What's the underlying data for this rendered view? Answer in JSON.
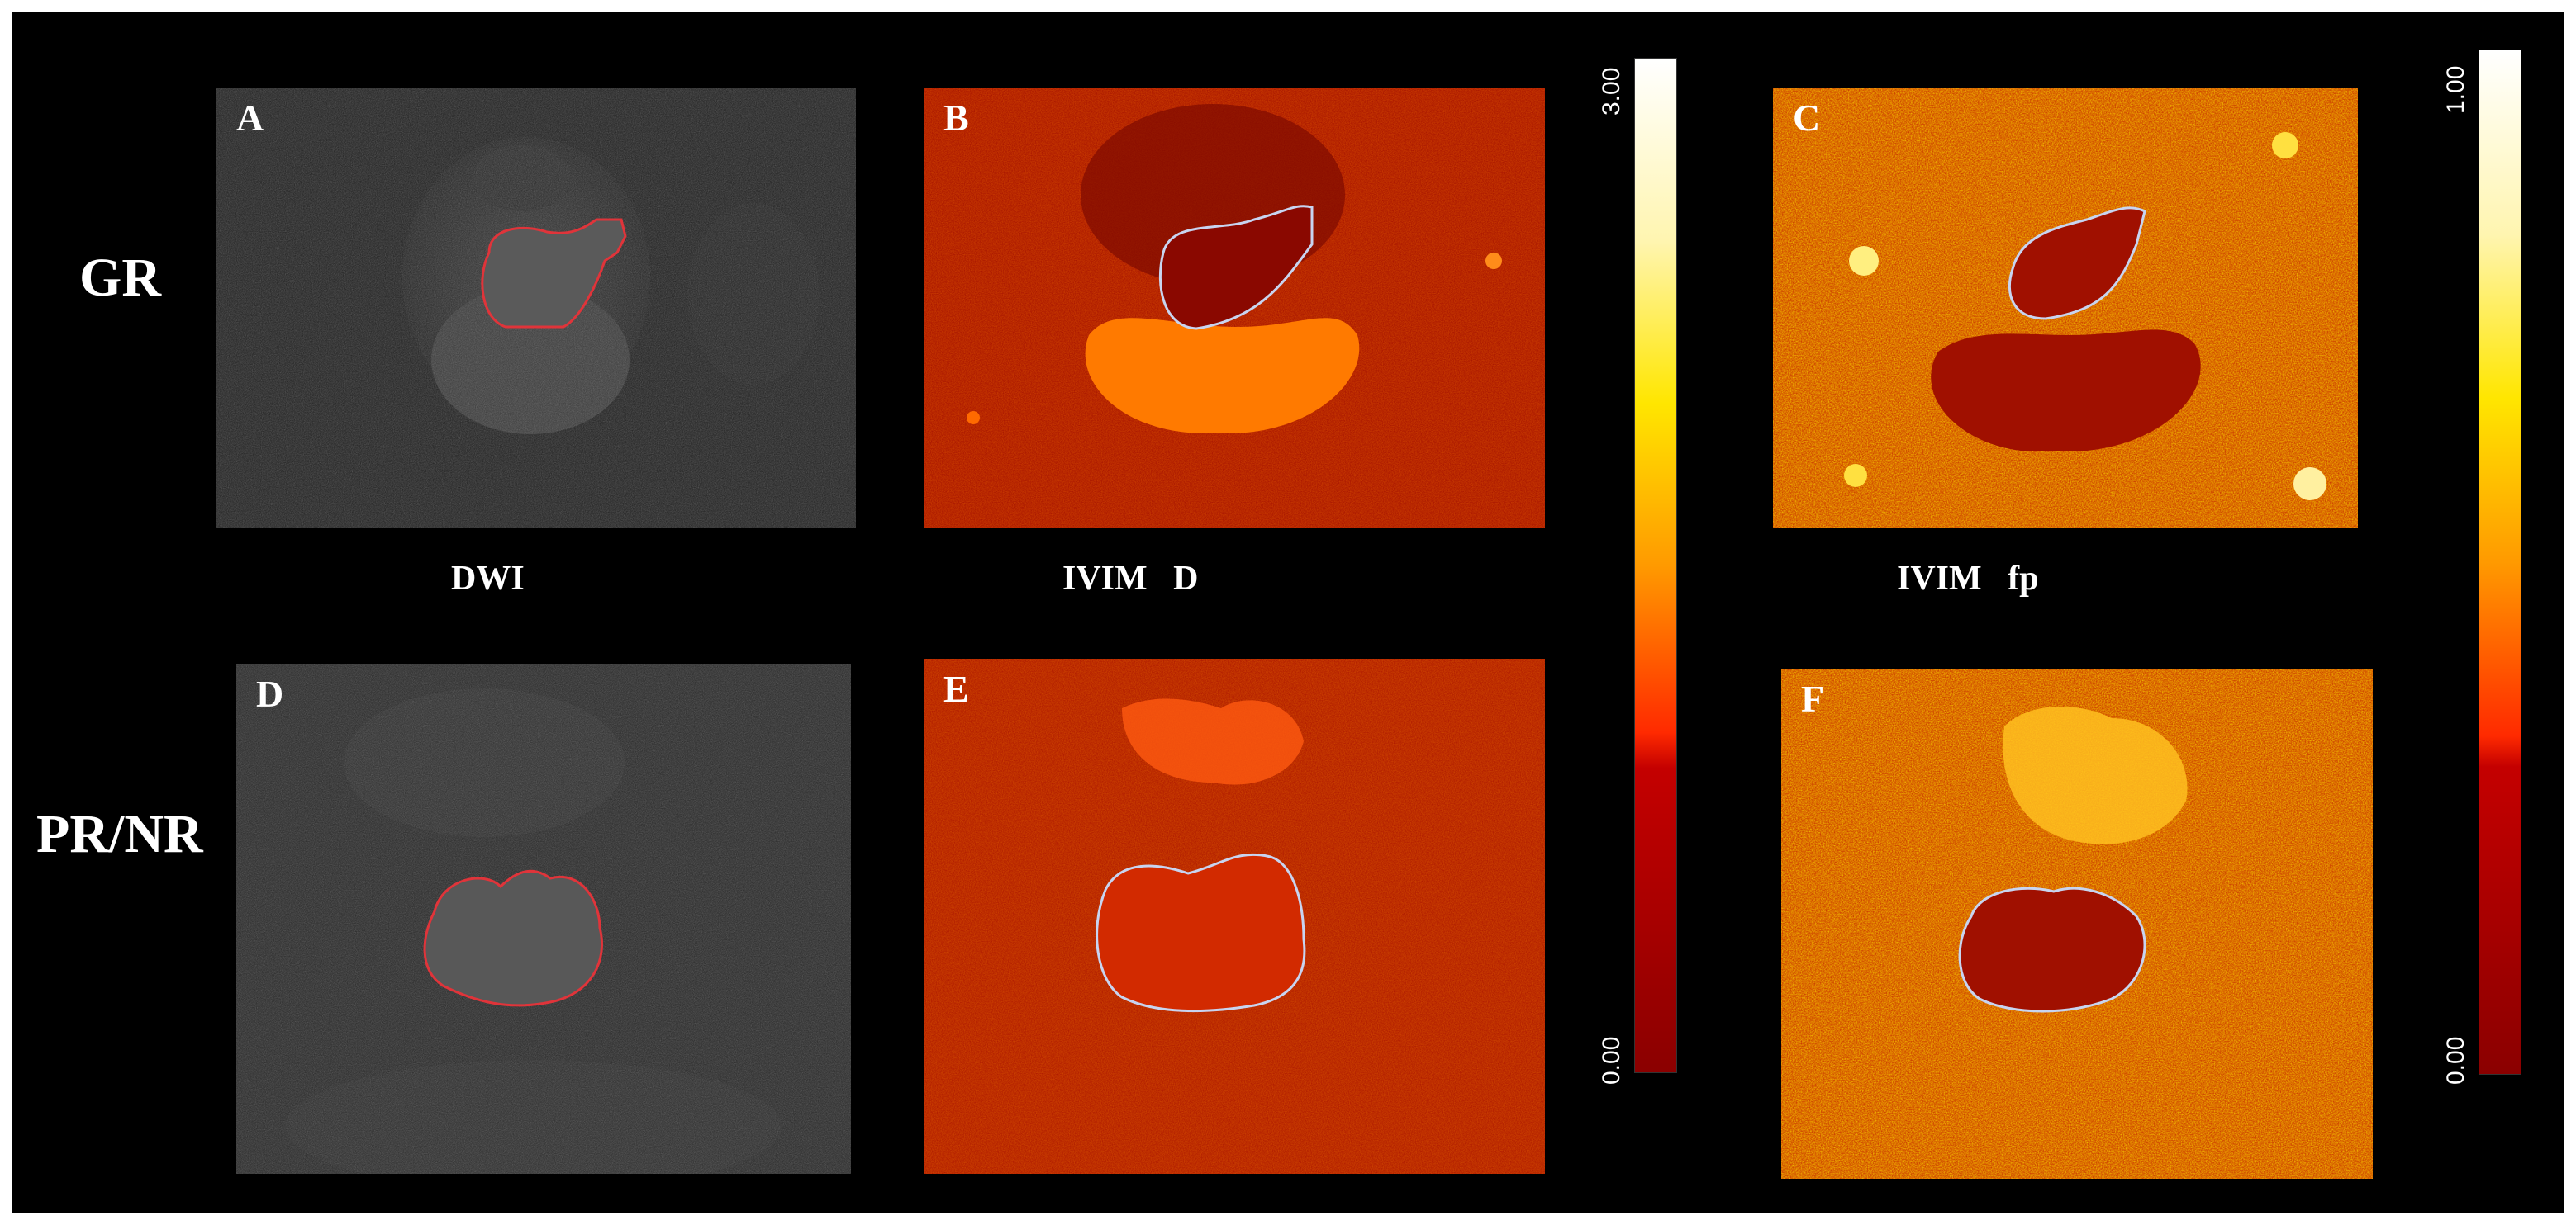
{
  "rows": {
    "top": "GR",
    "bottom": "PR/NR"
  },
  "columns": {
    "dwi": "DWI",
    "ivim_d": "IVIM   D",
    "ivim_fp": "IVIM   fp"
  },
  "panels": [
    {
      "letter": "A",
      "kind": "dwi"
    },
    {
      "letter": "B",
      "kind": "ivim_d"
    },
    {
      "letter": "C",
      "kind": "ivim_fp"
    },
    {
      "letter": "D",
      "kind": "dwi"
    },
    {
      "letter": "E",
      "kind": "ivim_d"
    },
    {
      "letter": "F",
      "kind": "ivim_fp"
    }
  ],
  "colorbars": {
    "d": {
      "max": "3.00",
      "min": "0.00"
    },
    "fp": {
      "max": "1.00",
      "min": "0.00"
    }
  },
  "colors": {
    "roi_dwi": "#e0343a",
    "roi_map": "#c8d4f0",
    "cbar_bottom": "#8b0000",
    "cbar_mid": "#ff2a00",
    "cbar_orange": "#ff9a00",
    "cbar_yellow": "#ffe600",
    "cbar_top": "#ffffff"
  }
}
